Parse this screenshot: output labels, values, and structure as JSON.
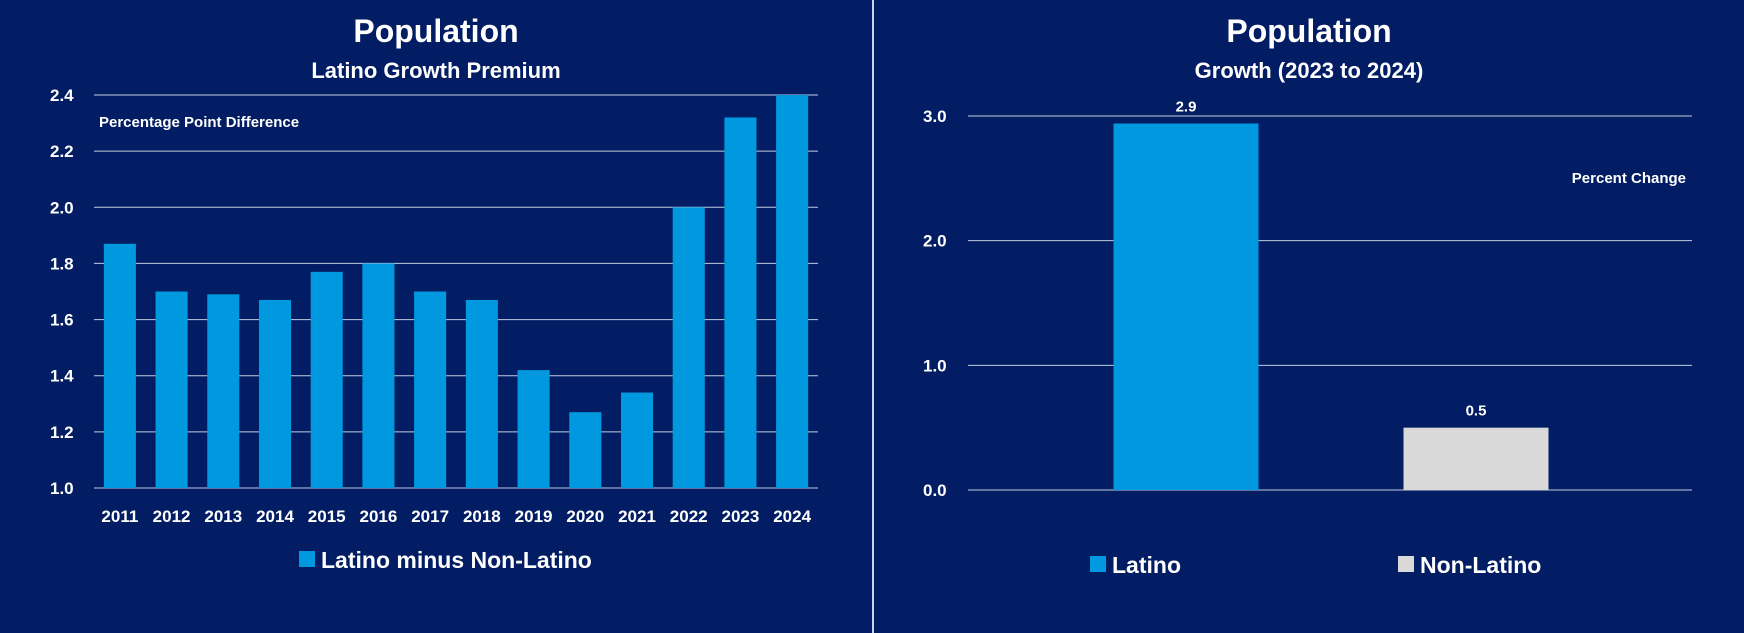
{
  "colors": {
    "background": "#021d63",
    "latino": "#0099e0",
    "non_latino": "#d9d9d9",
    "text": "#ffffff",
    "grid": "#c3cbe0"
  },
  "chart_data": [
    {
      "type": "bar",
      "title": "Population",
      "subtitle": "Latino Growth Premium",
      "note": "Percentage Point Difference",
      "categories": [
        "2011",
        "2012",
        "2013",
        "2014",
        "2015",
        "2016",
        "2017",
        "2018",
        "2019",
        "2020",
        "2021",
        "2022",
        "2023",
        "2024"
      ],
      "series": [
        {
          "name": "Latino minus Non-Latino",
          "values": [
            1.87,
            1.7,
            1.69,
            1.67,
            1.77,
            1.8,
            1.7,
            1.67,
            1.42,
            1.27,
            1.34,
            2.0,
            2.32,
            2.4
          ]
        }
      ],
      "ylim": [
        1.0,
        2.4
      ],
      "yticks": [
        "1.0",
        "1.2",
        "1.4",
        "1.6",
        "1.8",
        "2.0",
        "2.2",
        "2.4"
      ],
      "grid": true,
      "legend": "bottom"
    },
    {
      "type": "bar",
      "title": "Population",
      "subtitle": "Growth (2023 to 2024)",
      "note": "Percent Change",
      "categories": [
        "Latino",
        "Non-Latino"
      ],
      "values": [
        2.94,
        0.5
      ],
      "data_labels": [
        "2.9",
        "0.5"
      ],
      "ylim": [
        0.0,
        3.0
      ],
      "yticks": [
        "0.0",
        "1.0",
        "2.0",
        "3.0"
      ],
      "grid": true,
      "legend": "bottom"
    }
  ]
}
